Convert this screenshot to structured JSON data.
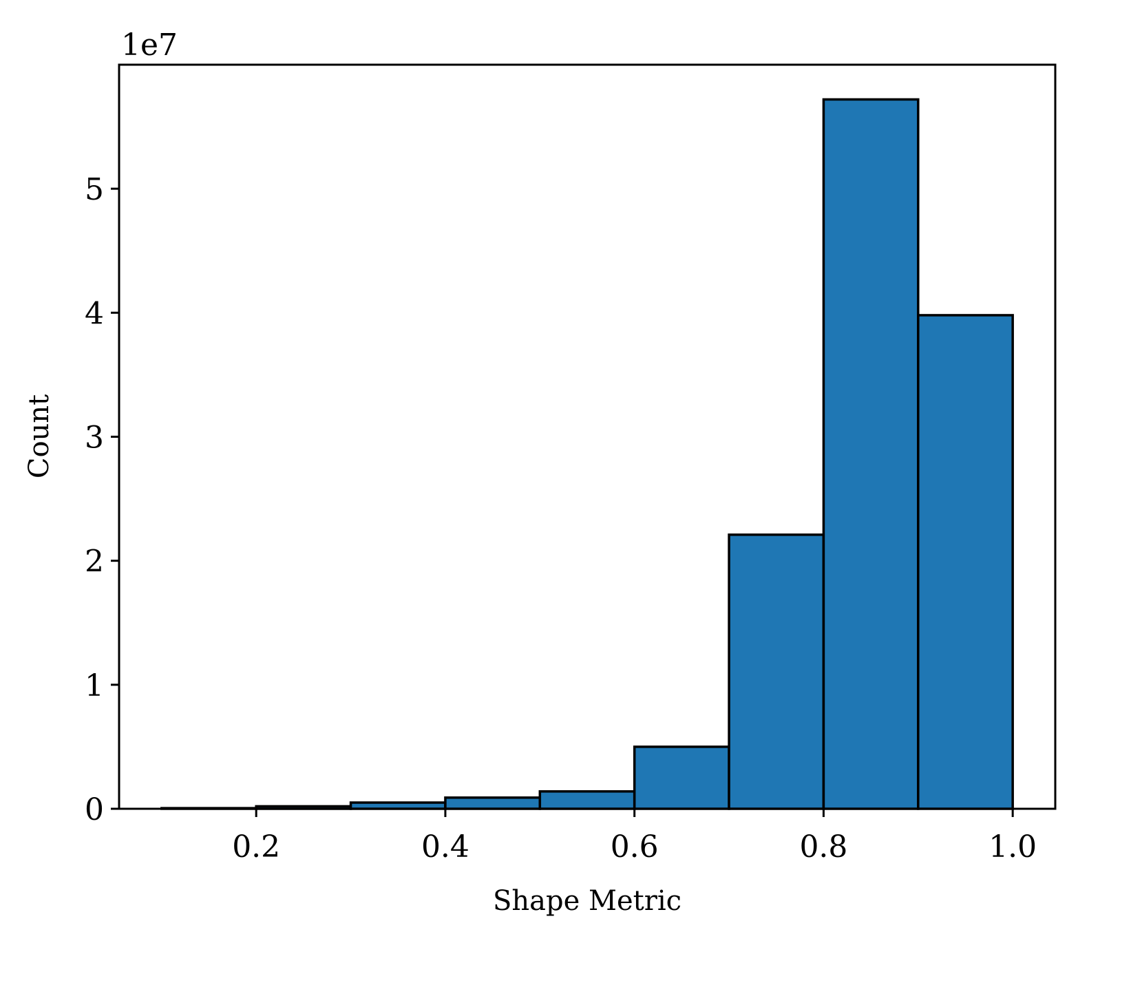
{
  "chart_data": {
    "type": "histogram",
    "x_label": "Shape Metric",
    "y_label": "Count",
    "y_offset_label": "1e7",
    "bins": [
      0.1,
      0.2,
      0.3,
      0.4,
      0.5,
      0.6,
      0.7,
      0.8,
      0.9,
      1.0
    ],
    "values": [
      0.005,
      0.02,
      0.05,
      0.09,
      0.14,
      0.5,
      2.21,
      5.72,
      3.98
    ],
    "color": "#1f77b4",
    "edgecolor": "#000000",
    "xlim": [
      0.055,
      1.045
    ],
    "xticks": [
      0.2,
      0.4,
      0.6,
      0.8,
      {
        "value": 1.0,
        "label": "1.0"
      }
    ],
    "ylim": [
      0,
      6.0
    ],
    "yticks": [
      0,
      1,
      2,
      3,
      4,
      5
    ],
    "grid": false
  }
}
